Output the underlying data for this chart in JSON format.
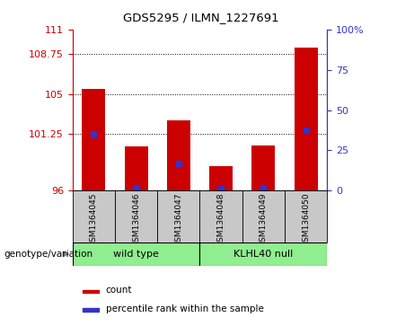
{
  "title": "GDS5295 / ILMN_1227691",
  "samples": [
    "GSM1364045",
    "GSM1364046",
    "GSM1364047",
    "GSM1364048",
    "GSM1364049",
    "GSM1364050"
  ],
  "bar_base": 96,
  "bar_tops": [
    105.5,
    100.1,
    102.5,
    98.3,
    100.2,
    109.3
  ],
  "percentile_values": [
    101.3,
    96.3,
    98.55,
    96.2,
    96.3,
    101.6
  ],
  "ylim_left": [
    96,
    111
  ],
  "yticks_left": [
    96,
    101.25,
    105,
    108.75,
    111
  ],
  "ylim_right": [
    0,
    100
  ],
  "yticks_right": [
    0,
    25,
    50,
    75,
    100
  ],
  "bar_color": "#CC0000",
  "blue_color": "#3333CC",
  "bar_width": 0.55,
  "bg_plot": "#FFFFFF",
  "bg_sample": "#C8C8C8",
  "bg_group": "#90EE90",
  "left_tick_color": "#CC0000",
  "right_tick_color": "#3333CC",
  "wt_label": "wild type",
  "kl_label": "KLHL40 null",
  "genotype_label": "genotype/variation",
  "legend_count": "count",
  "legend_pct": "percentile rank within the sample"
}
